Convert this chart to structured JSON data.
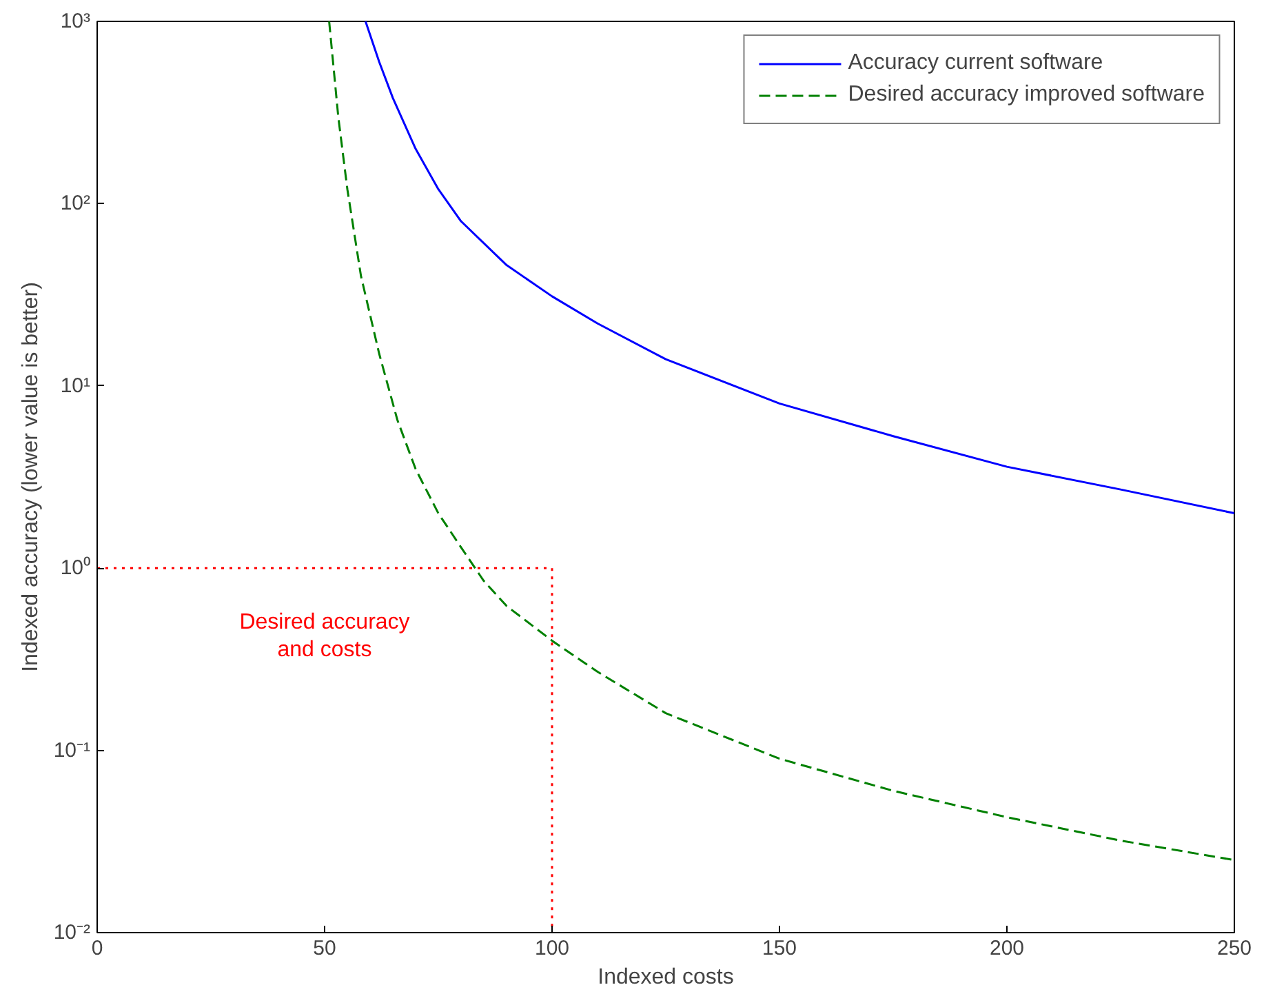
{
  "chart_data": {
    "type": "line",
    "xlabel": "Indexed costs",
    "ylabel": "Indexed accuracy (lower value is better)",
    "xlim": [
      0,
      250
    ],
    "xticks": [
      0,
      50,
      100,
      150,
      200,
      250
    ],
    "ylim": [
      0.01,
      1000
    ],
    "yticks": [
      {
        "value": 0.01,
        "label": "10⁻²"
      },
      {
        "value": 0.1,
        "label": "10⁻¹"
      },
      {
        "value": 1,
        "label": "10⁰"
      },
      {
        "value": 10,
        "label": "10¹"
      },
      {
        "value": 100,
        "label": "10²"
      },
      {
        "value": 1000,
        "label": "10³"
      }
    ],
    "log": "y",
    "grid": false,
    "legend": "top right",
    "marker": "none",
    "series": [
      {
        "name": "Accuracy current software",
        "color": "#0000ff",
        "line_style": "solid",
        "x": [
          59,
          62,
          65,
          70,
          75,
          80,
          90,
          100,
          110,
          125,
          150,
          175,
          200,
          225,
          250
        ],
        "values": [
          1000,
          600,
          380,
          200,
          120,
          80,
          46,
          31,
          22,
          14,
          8,
          5.3,
          3.6,
          2.7,
          2.0
        ]
      },
      {
        "name": "Desired accuracy improved software",
        "color": "#008000",
        "line_style": "dashed",
        "x": [
          51,
          53,
          55,
          58,
          62,
          66,
          70,
          75,
          80,
          85,
          90,
          100,
          110,
          125,
          150,
          175,
          200,
          225,
          250
        ],
        "values": [
          1000,
          300,
          120,
          40,
          15,
          6.5,
          3.5,
          2.0,
          1.3,
          0.85,
          0.62,
          0.4,
          0.27,
          0.16,
          0.09,
          0.06,
          0.043,
          0.032,
          0.025
        ]
      },
      {
        "color": "#ff0000",
        "line_style": "dotted",
        "x": [
          0,
          100,
          100
        ],
        "values": [
          1,
          1,
          0.01
        ]
      }
    ],
    "annotations": [
      "Desired accuracy\nand costs"
    ]
  }
}
